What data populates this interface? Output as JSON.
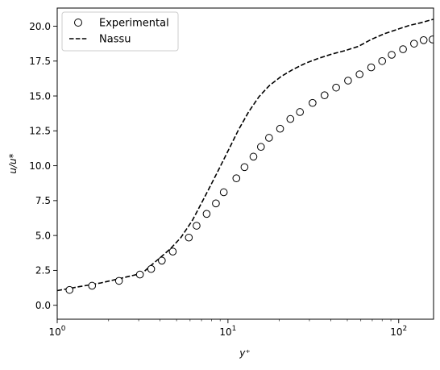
{
  "chart_data": {
    "type": "line",
    "xscale": "log",
    "xlim": [
      1,
      160
    ],
    "ylim": [
      -1,
      21.3
    ],
    "xlabel": "y⁺",
    "ylabel": "u/u*",
    "x_ticks": [
      {
        "value": 1,
        "base": "10",
        "exp": "0"
      },
      {
        "value": 10,
        "base": "10",
        "exp": "1"
      },
      {
        "value": 100,
        "base": "10",
        "exp": "2"
      }
    ],
    "y_ticks": [
      {
        "value": 0,
        "label": "0.0"
      },
      {
        "value": 2.5,
        "label": "2.5"
      },
      {
        "value": 5,
        "label": "5.0"
      },
      {
        "value": 7.5,
        "label": "7.5"
      },
      {
        "value": 10,
        "label": "10.0"
      },
      {
        "value": 12.5,
        "label": "12.5"
      },
      {
        "value": 15,
        "label": "15.0"
      },
      {
        "value": 17.5,
        "label": "17.5"
      },
      {
        "value": 20,
        "label": "20.0"
      }
    ],
    "legend": "upper-left",
    "grid": false,
    "series": [
      {
        "name": "Experimental",
        "style": "markers",
        "marker": "open-circle",
        "color": "#000000",
        "x": [
          1.18,
          1.6,
          2.3,
          3.05,
          3.55,
          4.1,
          4.75,
          5.9,
          6.55,
          7.5,
          8.5,
          9.45,
          11.2,
          12.5,
          14.1,
          15.6,
          17.4,
          20.2,
          23.2,
          26.4,
          31.3,
          36.8,
          43,
          50.5,
          59,
          69,
          80,
          91,
          106,
          123,
          140,
          158
        ],
        "y": [
          1.1,
          1.4,
          1.75,
          2.2,
          2.6,
          3.2,
          3.85,
          4.85,
          5.7,
          6.55,
          7.3,
          8.1,
          9.1,
          9.9,
          10.65,
          11.35,
          12.0,
          12.65,
          13.35,
          13.85,
          14.5,
          15.05,
          15.6,
          16.1,
          16.55,
          17.05,
          17.5,
          17.95,
          18.35,
          18.75,
          19.0,
          19.05
        ]
      },
      {
        "name": "Nassu",
        "style": "dashed-line",
        "color": "#000000",
        "x": [
          1.0,
          1.3,
          1.8,
          2.3,
          2.8,
          3.15,
          3.5,
          4.0,
          4.6,
          5.3,
          6.2,
          7.3,
          8.6,
          10.0,
          11.5,
          13.2,
          15.2,
          17.5,
          20.5,
          24,
          28.5,
          34,
          40.5,
          48.5,
          58,
          69,
          82,
          97,
          115,
          135,
          160
        ],
        "y": [
          1.05,
          1.3,
          1.6,
          1.9,
          2.15,
          2.3,
          2.8,
          3.4,
          4.05,
          4.85,
          6.1,
          7.75,
          9.45,
          11.05,
          12.55,
          13.85,
          14.95,
          15.75,
          16.4,
          16.9,
          17.35,
          17.7,
          18.0,
          18.25,
          18.55,
          19.05,
          19.45,
          19.75,
          20.05,
          20.25,
          20.5
        ]
      }
    ]
  }
}
